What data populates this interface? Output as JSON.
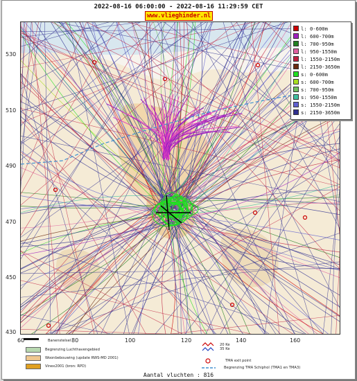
{
  "header": {
    "title": "2022-08-16 06:00:00 - 2022-08-16 11:29:59 CET",
    "site": "www.vlieghinder.nl"
  },
  "axes": {
    "y_ticks": [
      "530",
      "510",
      "490",
      "470",
      "450",
      "430"
    ],
    "x_ticks": [
      "60",
      "80",
      "100",
      "120",
      "140",
      "160"
    ]
  },
  "legend": {
    "items": [
      {
        "label": "l: 0-600m",
        "color": "#cc0000"
      },
      {
        "label": "l: 600-700m",
        "color": "#a020c0"
      },
      {
        "label": "l: 700-950m",
        "color": "#208020"
      },
      {
        "label": "l: 950-1550m",
        "color": "#e060a0"
      },
      {
        "label": "l: 1550-2150m",
        "color": "#c02040"
      },
      {
        "label": "l: 2150-3650m",
        "color": "#6a2a10"
      },
      {
        "label": "s: 0-600m",
        "color": "#20e020"
      },
      {
        "label": "s: 600-700m",
        "color": "#a8e020"
      },
      {
        "label": "s: 700-950m",
        "color": "#70c060"
      },
      {
        "label": "s: 950-1550m",
        "color": "#40c0a0"
      },
      {
        "label": "s: 1550-2150m",
        "color": "#6060d0"
      },
      {
        "label": "s: 2150-3650m",
        "color": "#303090"
      }
    ]
  },
  "footer": {
    "runway": "Banenstelsel",
    "airport_boundary": "Begrenzing Luchthavengebied",
    "housing": "Woonbebouwing (update RWS-MD 2001)",
    "vinex": "Vinex2001 (bron: RPD)",
    "ke20": "20 Ke",
    "ke35": "35 Ke",
    "tma_exit": "TMA exit point",
    "tma_boundary": "Begrenzing TMA Schiphol  (TMA1 en TMA3)",
    "colors": {
      "airport_boundary": "#b8d8b0",
      "housing": "#f0c890",
      "vinex": "#e0a020"
    }
  },
  "flight_count": "Aantal vluchten : 816"
}
